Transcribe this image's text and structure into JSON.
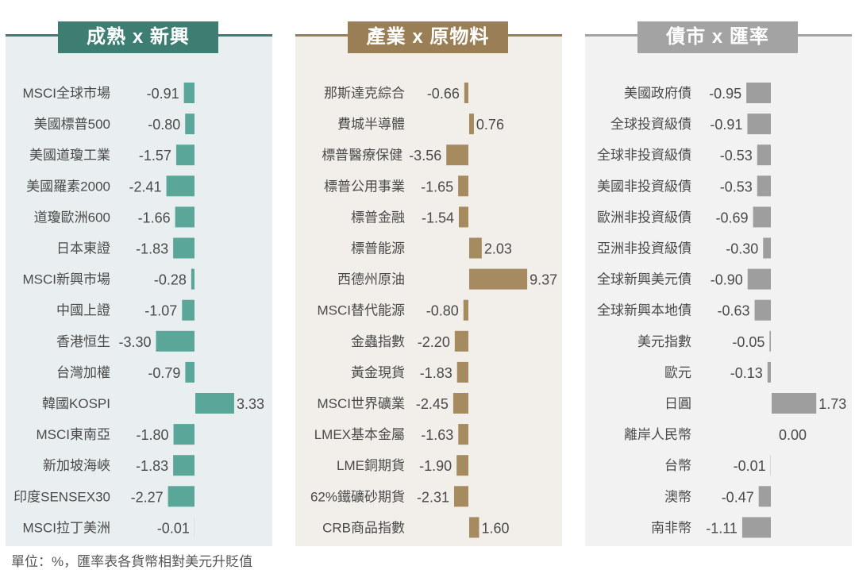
{
  "colors": {
    "em_bar": "#5aa79a",
    "em_title": "#3d7d72",
    "em_bg": "#e9eff0",
    "ind_bar": "#a58b5f",
    "ind_title": "#9a7f56",
    "ind_bg": "#f2efea",
    "fx_bar": "#9e9e9e",
    "fx_title": "#a3a3a3",
    "fx_bg": "#f2f2f2",
    "text": "#4a4a4a"
  },
  "footnote": "單位：%，匯率表各貨幣相對美元升貶值",
  "chart_data": [
    {
      "type": "bar",
      "orientation": "horizontal",
      "title": "成熟 x 新興",
      "categories": [
        "MSCI全球市場",
        "美國標普500",
        "美國道瓊工業",
        "美國羅素2000",
        "道瓊歐洲600",
        "日本東證",
        "MSCI新興市場",
        "中國上證",
        "香港恒生",
        "台灣加權",
        "韓國KOSPI",
        "MSCI東南亞",
        "新加坡海峽",
        "印度SENSEX30",
        "MSCI拉丁美洲"
      ],
      "values": [
        -0.91,
        -0.8,
        -1.57,
        -2.41,
        -1.66,
        -1.83,
        -0.28,
        -1.07,
        -3.3,
        -0.79,
        3.33,
        -1.8,
        -1.83,
        -2.27,
        -0.01
      ],
      "value_labels": [
        "-0.91",
        "-0.80",
        "-1.57",
        "-2.41",
        "-1.66",
        "-1.83",
        "-0.28",
        "-1.07",
        "-3.30",
        "-0.79",
        "3.33",
        "-1.80",
        "-1.83",
        "-2.27",
        "-0.01"
      ],
      "unit": "%"
    },
    {
      "type": "bar",
      "orientation": "horizontal",
      "title": "產業 x 原物料",
      "categories": [
        "那斯達克綜合",
        "費城半導體",
        "標普醫療保健",
        "標普公用事業",
        "標普金融",
        "標普能源",
        "西德州原油",
        "MSCI替代能源",
        "金蟲指數",
        "黃金現貨",
        "MSCI世界礦業",
        "LMEX基本金屬",
        "LME銅期貨",
        "62%鐵礦砂期貨",
        "CRB商品指數"
      ],
      "values": [
        -0.66,
        0.76,
        -3.56,
        -1.65,
        -1.54,
        2.03,
        9.37,
        -0.8,
        -2.2,
        -1.83,
        -2.45,
        -1.63,
        -1.9,
        -2.31,
        1.6
      ],
      "value_labels": [
        "-0.66",
        "0.76",
        "-3.56",
        "-1.65",
        "-1.54",
        "2.03",
        "9.37",
        "-0.80",
        "-2.20",
        "-1.83",
        "-2.45",
        "-1.63",
        "-1.90",
        "-2.31",
        "1.60"
      ],
      "unit": "%"
    },
    {
      "type": "bar",
      "orientation": "horizontal",
      "title": "債市 x 匯率",
      "categories": [
        "美國政府債",
        "全球投資級債",
        "全球非投資級債",
        "美國非投資級債",
        "歐洲非投資級債",
        "亞洲非投資級債",
        "全球新興美元債",
        "全球新興本地債",
        "美元指數",
        "歐元",
        "日圓",
        "離岸人民幣",
        "台幣",
        "澳幣",
        "南非幣"
      ],
      "values": [
        -0.95,
        -0.91,
        -0.53,
        -0.53,
        -0.69,
        -0.3,
        -0.9,
        -0.63,
        -0.05,
        -0.13,
        1.73,
        0.0,
        -0.01,
        -0.47,
        -1.11
      ],
      "value_labels": [
        "-0.95",
        "-0.91",
        "-0.53",
        "-0.53",
        "-0.69",
        "-0.30",
        "-0.90",
        "-0.63",
        "-0.05",
        "-0.13",
        "1.73",
        "0.00",
        "-0.01",
        "-0.47",
        "-1.11"
      ],
      "unit": "%"
    }
  ]
}
